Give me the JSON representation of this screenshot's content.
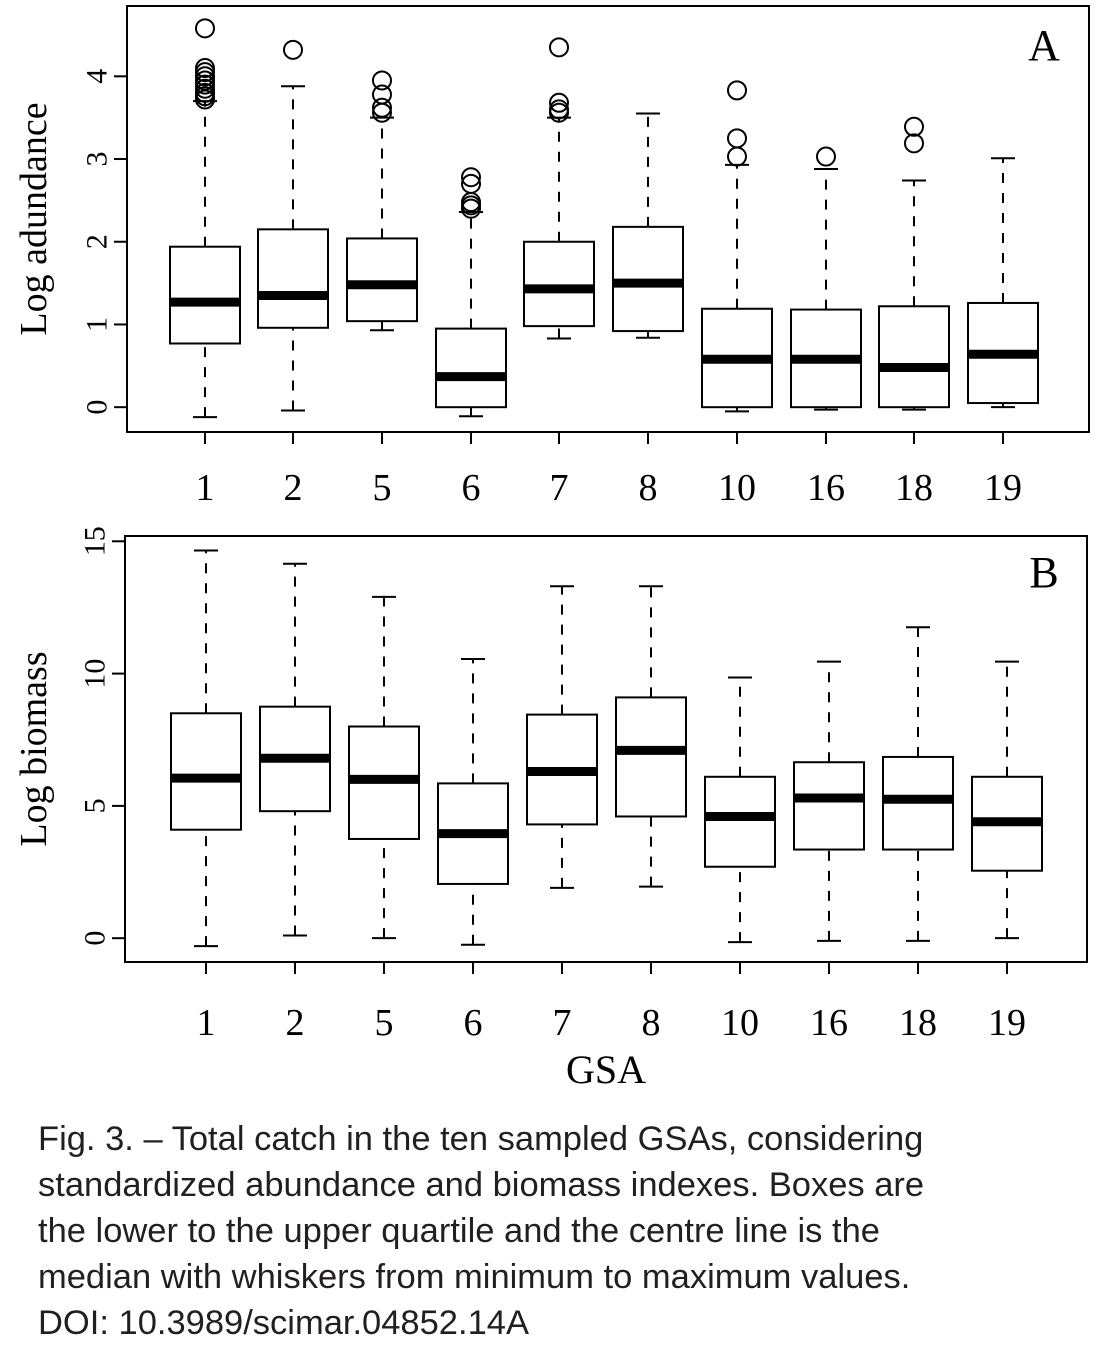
{
  "chart_data": [
    {
      "type": "box",
      "panel_label": "A",
      "ylabel": "Log adundance",
      "xlabel": "",
      "categories": [
        "1",
        "2",
        "5",
        "6",
        "7",
        "8",
        "10",
        "16",
        "18",
        "19"
      ],
      "ylim": [
        -0.3,
        4.85
      ],
      "yticks": [
        0,
        1,
        2,
        3,
        4
      ],
      "boxes": [
        {
          "min": -0.12,
          "q1": 0.77,
          "median": 1.27,
          "q3": 1.94,
          "max": 3.7,
          "outliers": [
            3.72,
            3.76,
            3.8,
            3.85,
            3.9,
            3.95,
            4.0,
            4.05,
            4.1,
            4.58
          ]
        },
        {
          "min": -0.04,
          "q1": 0.96,
          "median": 1.35,
          "q3": 2.15,
          "max": 3.88,
          "outliers": [
            4.32
          ]
        },
        {
          "min": 0.93,
          "q1": 1.04,
          "median": 1.48,
          "q3": 2.04,
          "max": 3.5,
          "outliers": [
            3.56,
            3.62,
            3.78,
            3.95
          ]
        },
        {
          "min": -0.11,
          "q1": 0.0,
          "median": 0.37,
          "q3": 0.95,
          "max": 2.36,
          "outliers": [
            2.4,
            2.44,
            2.48,
            2.7,
            2.78
          ]
        },
        {
          "min": 0.83,
          "q1": 0.98,
          "median": 1.43,
          "q3": 2.0,
          "max": 3.5,
          "outliers": [
            3.56,
            3.6,
            3.68,
            4.35
          ]
        },
        {
          "min": 0.84,
          "q1": 0.92,
          "median": 1.5,
          "q3": 2.18,
          "max": 3.55,
          "outliers": []
        },
        {
          "min": -0.05,
          "q1": 0.0,
          "median": 0.58,
          "q3": 1.19,
          "max": 2.93,
          "outliers": [
            3.03,
            3.25,
            3.83
          ]
        },
        {
          "min": -0.03,
          "q1": 0.0,
          "median": 0.58,
          "q3": 1.18,
          "max": 2.88,
          "outliers": [
            3.03
          ]
        },
        {
          "min": -0.03,
          "q1": 0.0,
          "median": 0.48,
          "q3": 1.22,
          "max": 2.74,
          "outliers": [
            3.19,
            3.39
          ]
        },
        {
          "min": 0.0,
          "q1": 0.05,
          "median": 0.64,
          "q3": 1.26,
          "max": 3.01,
          "outliers": []
        }
      ]
    },
    {
      "type": "box",
      "panel_label": "B",
      "ylabel": "Log biomass",
      "xlabel": "GSA",
      "categories": [
        "1",
        "2",
        "5",
        "6",
        "7",
        "8",
        "10",
        "16",
        "18",
        "19"
      ],
      "ylim": [
        -0.9,
        15.2
      ],
      "yticks": [
        0,
        5,
        10,
        15
      ],
      "boxes": [
        {
          "min": -0.3,
          "q1": 4.1,
          "median": 6.05,
          "q3": 8.5,
          "max": 14.65,
          "outliers": []
        },
        {
          "min": 0.1,
          "q1": 4.8,
          "median": 6.8,
          "q3": 8.75,
          "max": 14.15,
          "outliers": []
        },
        {
          "min": 0.0,
          "q1": 3.75,
          "median": 6.0,
          "q3": 8.0,
          "max": 12.9,
          "outliers": []
        },
        {
          "min": -0.25,
          "q1": 2.05,
          "median": 3.95,
          "q3": 5.85,
          "max": 10.55,
          "outliers": []
        },
        {
          "min": 1.9,
          "q1": 4.3,
          "median": 6.3,
          "q3": 8.45,
          "max": 13.3,
          "outliers": []
        },
        {
          "min": 1.95,
          "q1": 4.6,
          "median": 7.1,
          "q3": 9.1,
          "max": 13.3,
          "outliers": []
        },
        {
          "min": -0.15,
          "q1": 2.7,
          "median": 4.6,
          "q3": 6.1,
          "max": 9.85,
          "outliers": []
        },
        {
          "min": -0.1,
          "q1": 3.35,
          "median": 5.3,
          "q3": 6.65,
          "max": 10.45,
          "outliers": []
        },
        {
          "min": -0.1,
          "q1": 3.35,
          "median": 5.25,
          "q3": 6.85,
          "max": 11.75,
          "outliers": []
        },
        {
          "min": 0.0,
          "q1": 2.55,
          "median": 4.4,
          "q3": 6.1,
          "max": 10.45,
          "outliers": []
        }
      ]
    }
  ],
  "caption": {
    "lines": [
      "Fig. 3. – Total catch in the ten sampled GSAs, considering",
      "standardized abundance and biomass indexes. Boxes are",
      "the lower to the upper quartile and the centre line is the",
      "median with whiskers from minimum to maximum values.",
      "DOI: 10.3989/scimar.04852.14A"
    ]
  },
  "colors": {
    "ink": "#000000",
    "caption_text": "#231f20",
    "background": "#ffffff"
  }
}
